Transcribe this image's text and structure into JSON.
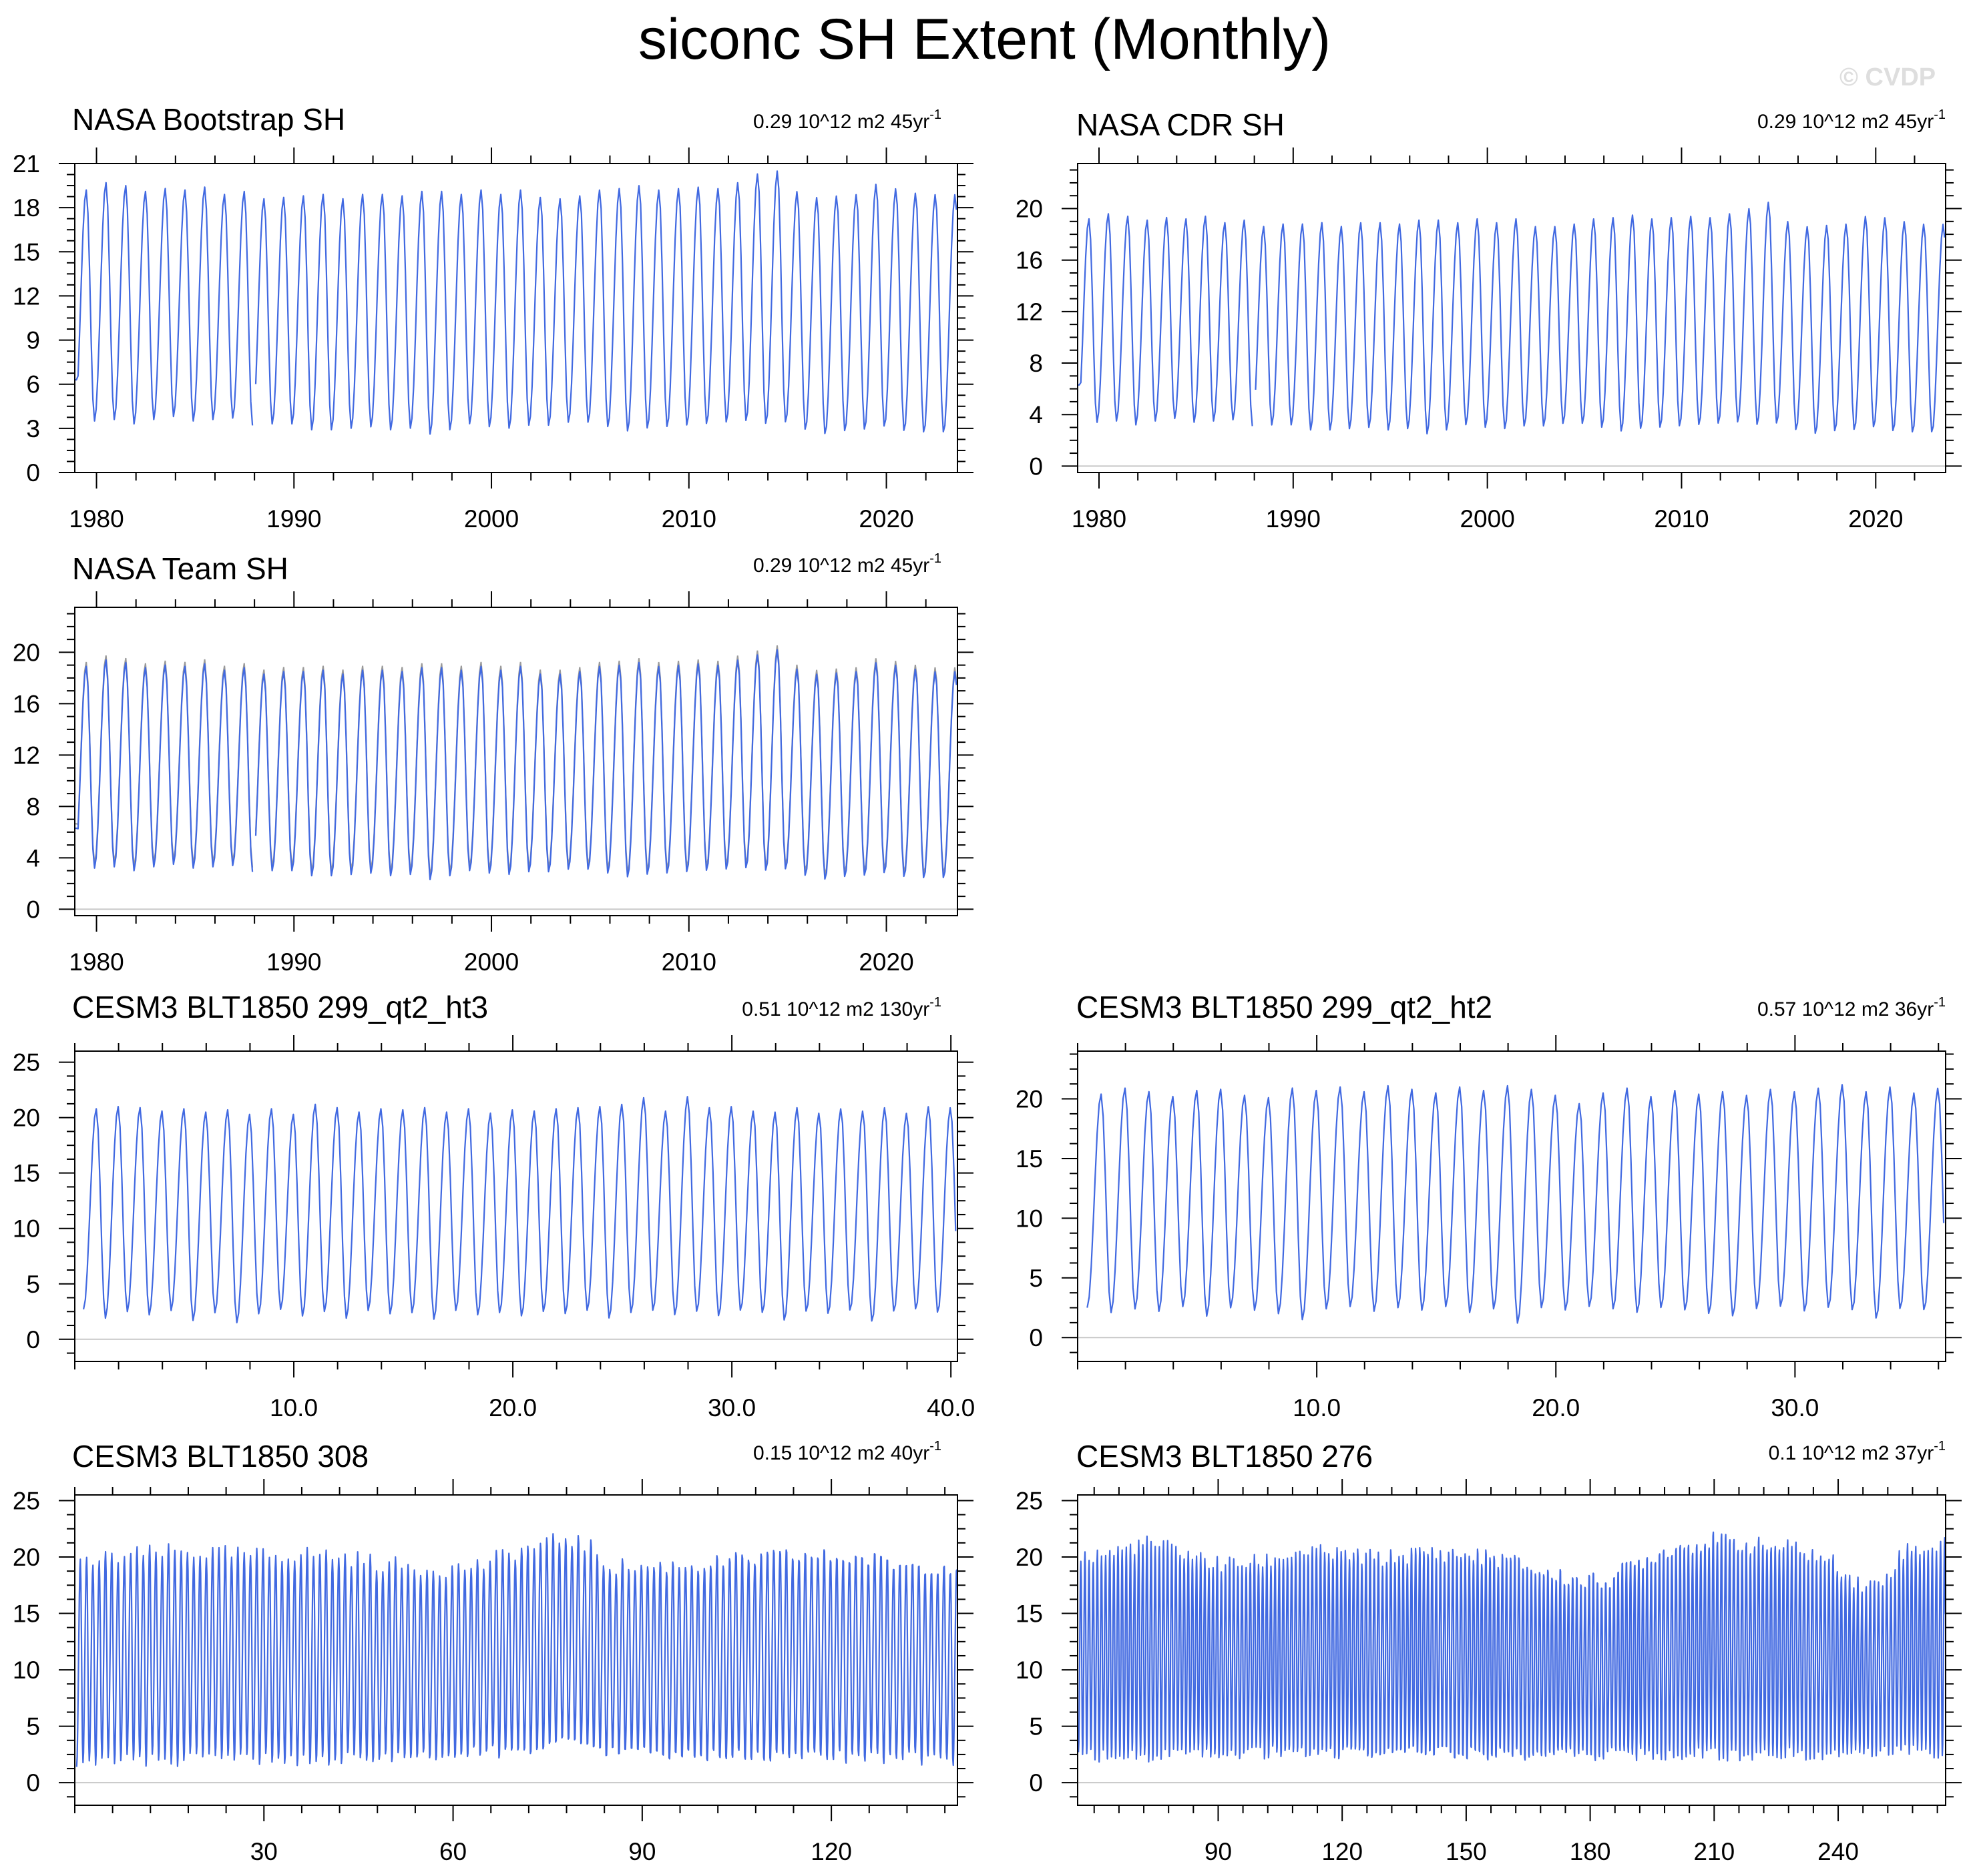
{
  "title": "siconc SH Extent (Monthly)",
  "watermark": "© CVDP",
  "colors": {
    "series": "#4169e1",
    "obs_overlay": "#9a9a9a",
    "zero_line": "#c8c8c8",
    "frame": "#000000"
  },
  "chart_data": [
    {
      "type": "line",
      "title": "NASA Bootstrap SH",
      "rate_value": "0.29 10^12 m2 45yr",
      "rate_superscript": "-1",
      "xlim": [
        1978.9,
        2023.6
      ],
      "ylim": [
        0,
        21
      ],
      "x_ticks": [
        1980,
        1990,
        2000,
        2010,
        2020
      ],
      "x_tick_labels": [
        "1980",
        "1990",
        "2000",
        "2010",
        "2020"
      ],
      "y_ticks": [
        0,
        3,
        6,
        9,
        12,
        15,
        18,
        21
      ],
      "y_tick_labels": [
        "0",
        "3",
        "6",
        "9",
        "12",
        "15",
        "18",
        "21"
      ],
      "zero_line": false,
      "overlay": false,
      "series": {
        "name": "NASA Bootstrap SH",
        "start": 1978.9,
        "step": 0.0833,
        "gap": [
          1987.9,
          1988.0
        ],
        "annual_max": [
          19.2,
          19.7,
          19.5,
          19.1,
          19.3,
          19.2,
          19.4,
          18.9,
          19.1,
          18.6,
          18.7,
          18.8,
          18.9,
          18.6,
          18.9,
          18.9,
          18.8,
          19.1,
          19.1,
          18.9,
          19.2,
          18.9,
          19.2,
          18.7,
          18.6,
          18.8,
          19.2,
          19.3,
          19.5,
          19.2,
          19.3,
          19.4,
          19.3,
          19.7,
          20.3,
          20.5,
          19.1,
          18.7,
          18.8,
          18.9,
          19.6,
          19.3,
          19.0,
          18.9
        ],
        "annual_min": [
          3.6,
          3.5,
          3.6,
          3.3,
          3.6,
          3.8,
          3.5,
          3.6,
          3.7,
          3.2,
          3.3,
          3.3,
          2.9,
          2.9,
          3.0,
          3.1,
          2.9,
          3.0,
          2.6,
          2.9,
          3.3,
          3.1,
          3.0,
          3.2,
          3.2,
          3.4,
          3.4,
          3.1,
          2.8,
          3.0,
          3.1,
          3.2,
          3.3,
          3.4,
          3.5,
          3.3,
          3.4,
          2.9,
          2.6,
          2.8,
          2.9,
          3.1,
          2.8,
          2.7
        ]
      }
    },
    {
      "type": "line",
      "title": "NASA CDR SH",
      "rate_value": "0.29 10^12 m2 45yr",
      "rate_superscript": "-1",
      "xlim": [
        1978.9,
        2023.6
      ],
      "ylim": [
        -0.5,
        23.5
      ],
      "x_ticks": [
        1980,
        1990,
        2000,
        2010,
        2020
      ],
      "x_tick_labels": [
        "1980",
        "1990",
        "2000",
        "2010",
        "2020"
      ],
      "y_ticks": [
        0,
        4,
        8,
        12,
        16,
        20
      ],
      "y_tick_labels": [
        "0",
        "4",
        "8",
        "12",
        "16",
        "20"
      ],
      "zero_line": true,
      "overlay": false,
      "series": {
        "name": "NASA CDR SH",
        "start": 1978.9,
        "step": 0.0833,
        "gap": [
          1987.9,
          1988.0
        ],
        "annual_max": [
          19.2,
          19.6,
          19.4,
          19.1,
          19.3,
          19.2,
          19.4,
          18.9,
          19.1,
          18.6,
          18.8,
          18.8,
          18.9,
          18.6,
          18.9,
          18.9,
          18.8,
          19.1,
          19.1,
          18.9,
          19.2,
          18.9,
          19.2,
          18.6,
          18.6,
          18.8,
          19.2,
          19.3,
          19.5,
          19.2,
          19.3,
          19.4,
          19.3,
          19.6,
          20.0,
          20.5,
          19.0,
          18.6,
          18.7,
          18.8,
          19.4,
          19.3,
          19.0,
          18.8
        ],
        "annual_min": [
          3.5,
          3.4,
          3.5,
          3.2,
          3.5,
          3.7,
          3.4,
          3.5,
          3.6,
          3.1,
          3.2,
          3.2,
          2.8,
          2.8,
          2.9,
          3.0,
          2.8,
          2.9,
          2.5,
          2.8,
          3.2,
          3.0,
          2.9,
          3.1,
          3.1,
          3.3,
          3.3,
          3.0,
          2.7,
          2.9,
          3.0,
          3.1,
          3.2,
          3.3,
          3.4,
          3.2,
          3.3,
          2.8,
          2.5,
          2.7,
          2.8,
          3.0,
          2.7,
          2.6
        ]
      }
    },
    {
      "type": "line",
      "title": "NASA Team SH",
      "rate_value": "0.29 10^12 m2 45yr",
      "rate_superscript": "-1",
      "xlim": [
        1978.9,
        2023.6
      ],
      "ylim": [
        -0.5,
        23.5
      ],
      "x_ticks": [
        1980,
        1990,
        2000,
        2010,
        2020
      ],
      "x_tick_labels": [
        "1980",
        "1990",
        "2000",
        "2010",
        "2020"
      ],
      "y_ticks": [
        0,
        4,
        8,
        12,
        16,
        20
      ],
      "y_tick_labels": [
        "0",
        "4",
        "8",
        "12",
        "16",
        "20"
      ],
      "zero_line": true,
      "overlay": true,
      "series": {
        "name": "NASA Team SH",
        "start": 1978.9,
        "step": 0.0833,
        "gap": [
          1987.9,
          1988.0
        ],
        "annual_max": [
          18.9,
          19.4,
          19.2,
          18.8,
          19.0,
          18.9,
          19.1,
          18.6,
          18.8,
          18.3,
          18.5,
          18.5,
          18.6,
          18.3,
          18.6,
          18.6,
          18.5,
          18.8,
          18.8,
          18.6,
          18.9,
          18.6,
          18.9,
          18.3,
          18.3,
          18.5,
          18.9,
          19.0,
          19.2,
          18.9,
          19.0,
          19.1,
          19.0,
          19.4,
          19.8,
          20.2,
          18.7,
          18.3,
          18.4,
          18.5,
          19.2,
          19.0,
          18.7,
          18.5
        ],
        "annual_min": [
          3.3,
          3.2,
          3.3,
          3.0,
          3.3,
          3.5,
          3.2,
          3.3,
          3.4,
          2.9,
          3.0,
          3.0,
          2.6,
          2.6,
          2.7,
          2.8,
          2.6,
          2.7,
          2.3,
          2.6,
          3.0,
          2.8,
          2.7,
          2.9,
          2.9,
          3.1,
          3.1,
          2.8,
          2.5,
          2.7,
          2.8,
          2.9,
          3.0,
          3.1,
          3.2,
          3.0,
          3.1,
          2.6,
          2.3,
          2.5,
          2.6,
          2.8,
          2.5,
          2.4
        ]
      }
    },
    {
      "type": "line",
      "title": "CESM3 BLT1850 299_qt2_ht3",
      "rate_value": "0.51 10^12 m2 130yr",
      "rate_superscript": "-1",
      "xlim": [
        0,
        40.3
      ],
      "ylim": [
        -2,
        26
      ],
      "x_ticks": [
        10,
        20,
        30,
        40
      ],
      "x_tick_labels": [
        "10.0",
        "20.0",
        "30.0",
        "40.0"
      ],
      "y_ticks": [
        0,
        5,
        10,
        15,
        20,
        25
      ],
      "y_tick_labels": [
        "0",
        "5",
        "10",
        "15",
        "20",
        "25"
      ],
      "zero_line": true,
      "overlay": false,
      "series": {
        "name": "CESM3 BLT1850 299_qt2_ht3",
        "start": 0.4,
        "step": 0.0833,
        "gap": null,
        "annual_max": [
          20.8,
          21.0,
          20.9,
          20.6,
          20.8,
          20.5,
          20.7,
          20.3,
          20.8,
          20.3,
          21.2,
          20.9,
          20.5,
          20.8,
          20.7,
          20.9,
          20.5,
          20.8,
          20.4,
          20.7,
          20.6,
          20.8,
          20.9,
          21.0,
          21.2,
          21.8,
          20.6,
          21.9,
          20.9,
          21.0,
          20.6,
          20.5,
          20.9,
          20.4,
          20.8,
          20.6,
          20.9,
          20.4,
          21.0,
          20.9
        ],
        "annual_min": [
          2.7,
          1.9,
          2.5,
          2.2,
          2.6,
          1.7,
          2.4,
          1.5,
          2.3,
          2.7,
          2.1,
          2.5,
          1.9,
          2.6,
          2.3,
          2.4,
          1.8,
          2.6,
          2.2,
          2.4,
          2.1,
          2.5,
          2.3,
          2.6,
          1.9,
          2.4,
          2.6,
          2.2,
          2.5,
          2.1,
          2.6,
          2.4,
          1.7,
          2.5,
          2.3,
          2.6,
          1.6,
          2.5,
          2.7,
          2.4
        ]
      }
    },
    {
      "type": "line",
      "title": "CESM3 BLT1850 299_qt2_ht2",
      "rate_value": "0.57 10^12 m2 36yr",
      "rate_superscript": "-1",
      "xlim": [
        0,
        36.3
      ],
      "ylim": [
        -2,
        24
      ],
      "x_ticks": [
        10,
        20,
        30
      ],
      "x_tick_labels": [
        "10.0",
        "20.0",
        "30.0"
      ],
      "y_ticks": [
        0,
        5,
        10,
        15,
        20
      ],
      "y_tick_labels": [
        "0",
        "5",
        "10",
        "15",
        "20"
      ],
      "zero_line": true,
      "overlay": false,
      "series": {
        "name": "CESM3 BLT1850 299_qt2_ht2",
        "start": 0.4,
        "step": 0.0833,
        "gap": null,
        "annual_max": [
          20.4,
          20.9,
          20.6,
          20.2,
          20.7,
          20.8,
          20.3,
          20.1,
          20.9,
          20.7,
          21.0,
          20.6,
          21.1,
          20.8,
          20.5,
          21.0,
          20.7,
          21.1,
          20.8,
          20.3,
          19.6,
          20.5,
          20.9,
          20.2,
          20.7,
          20.4,
          20.6,
          20.3,
          20.8,
          20.6,
          20.9,
          21.2,
          20.6,
          21.0,
          20.5,
          20.9
        ],
        "annual_min": [
          2.5,
          2.1,
          2.4,
          2.2,
          2.6,
          1.8,
          2.5,
          2.3,
          2.0,
          1.5,
          2.4,
          2.6,
          2.2,
          2.5,
          2.3,
          2.6,
          2.1,
          2.4,
          1.2,
          2.5,
          2.3,
          2.6,
          2.4,
          2.1,
          2.5,
          2.3,
          2.0,
          1.8,
          2.4,
          2.6,
          2.2,
          2.5,
          2.3,
          1.6,
          2.4,
          2.3
        ]
      }
    },
    {
      "type": "line",
      "title": "CESM3 BLT1850 308",
      "rate_value": "0.15 10^12 m2 40yr",
      "rate_superscript": "-1",
      "xlim": [
        0,
        140
      ],
      "ylim": [
        -2,
        25.5
      ],
      "x_ticks": [
        30,
        60,
        90,
        120
      ],
      "x_tick_labels": [
        "30",
        "60",
        "90",
        "120"
      ],
      "y_ticks": [
        0,
        5,
        10,
        15,
        20,
        25
      ],
      "y_tick_labels": [
        "0",
        "5",
        "10",
        "15",
        "20",
        "25"
      ],
      "zero_line": true,
      "overlay": false,
      "series": {
        "name": "CESM3 BLT1850 308",
        "start": 0.3,
        "step": 0.0833,
        "gap": null,
        "annual_max_profile": [
          [
            0,
            19.3
          ],
          [
            5,
            19.8
          ],
          [
            10,
            20.2
          ],
          [
            15,
            20.4
          ],
          [
            20,
            20.4
          ],
          [
            25,
            20.2
          ],
          [
            30,
            20.1
          ],
          [
            35,
            20.3
          ],
          [
            40,
            20.2
          ],
          [
            45,
            19.8
          ],
          [
            50,
            19.3
          ],
          [
            55,
            19.1
          ],
          [
            60,
            19.0
          ],
          [
            65,
            19.4
          ],
          [
            70,
            20.6
          ],
          [
            75,
            21.2
          ],
          [
            78,
            21.9
          ],
          [
            82,
            20.8
          ],
          [
            85,
            19.3
          ],
          [
            90,
            19.2
          ],
          [
            95,
            19.4
          ],
          [
            100,
            19.5
          ],
          [
            105,
            19.8
          ],
          [
            110,
            20.1
          ],
          [
            115,
            20.3
          ],
          [
            120,
            20.2
          ],
          [
            125,
            20.1
          ],
          [
            130,
            19.6
          ],
          [
            135,
            19.5
          ],
          [
            140,
            19.4
          ]
        ],
        "annual_min_profile": [
          [
            0,
            1.9
          ],
          [
            10,
            2.0
          ],
          [
            20,
            2.0
          ],
          [
            30,
            2.1
          ],
          [
            40,
            2.0
          ],
          [
            50,
            2.1
          ],
          [
            60,
            2.3
          ],
          [
            70,
            2.7
          ],
          [
            78,
            3.2
          ],
          [
            85,
            2.5
          ],
          [
            95,
            2.2
          ],
          [
            110,
            2.1
          ],
          [
            125,
            2.1
          ],
          [
            140,
            2.0
          ]
        ]
      }
    },
    {
      "type": "line",
      "title": "CESM3 BLT1850 276",
      "rate_value": "0.1 10^12 m2 37yr",
      "rate_superscript": "-1",
      "xlim": [
        56,
        266
      ],
      "ylim": [
        -2,
        25.5
      ],
      "x_ticks": [
        90,
        120,
        150,
        180,
        210,
        240
      ],
      "x_tick_labels": [
        "90",
        "120",
        "150",
        "180",
        "210",
        "240"
      ],
      "y_ticks": [
        0,
        5,
        10,
        15,
        20,
        25
      ],
      "y_tick_labels": [
        "0",
        "5",
        "10",
        "15",
        "20",
        "25"
      ],
      "zero_line": true,
      "overlay": false,
      "series": {
        "name": "CESM3 BLT1850 276",
        "start": 56.2,
        "step": 0.0833,
        "gap": null,
        "annual_max_profile": [
          [
            56,
            19.9
          ],
          [
            65,
            20.4
          ],
          [
            72,
            21.2
          ],
          [
            80,
            20.6
          ],
          [
            90,
            19.3
          ],
          [
            100,
            19.5
          ],
          [
            110,
            20.5
          ],
          [
            120,
            20.2
          ],
          [
            130,
            19.9
          ],
          [
            140,
            20.5
          ],
          [
            150,
            20.3
          ],
          [
            160,
            19.9
          ],
          [
            170,
            18.6
          ],
          [
            175,
            18.3
          ],
          [
            180,
            18.0
          ],
          [
            185,
            18.3
          ],
          [
            190,
            19.5
          ],
          [
            200,
            21.0
          ],
          [
            210,
            21.6
          ],
          [
            220,
            21.1
          ],
          [
            230,
            20.8
          ],
          [
            240,
            19.3
          ],
          [
            245,
            17.6
          ],
          [
            250,
            17.5
          ],
          [
            256,
            20.6
          ],
          [
            266,
            21.0
          ]
        ],
        "annual_min_profile": [
          [
            56,
            2.4
          ],
          [
            80,
            2.4
          ],
          [
            100,
            2.6
          ],
          [
            150,
            2.4
          ],
          [
            170,
            2.3
          ],
          [
            180,
            2.4
          ],
          [
            200,
            2.4
          ],
          [
            230,
            2.5
          ],
          [
            245,
            2.8
          ],
          [
            255,
            3.1
          ],
          [
            266,
            2.6
          ]
        ]
      }
    }
  ]
}
